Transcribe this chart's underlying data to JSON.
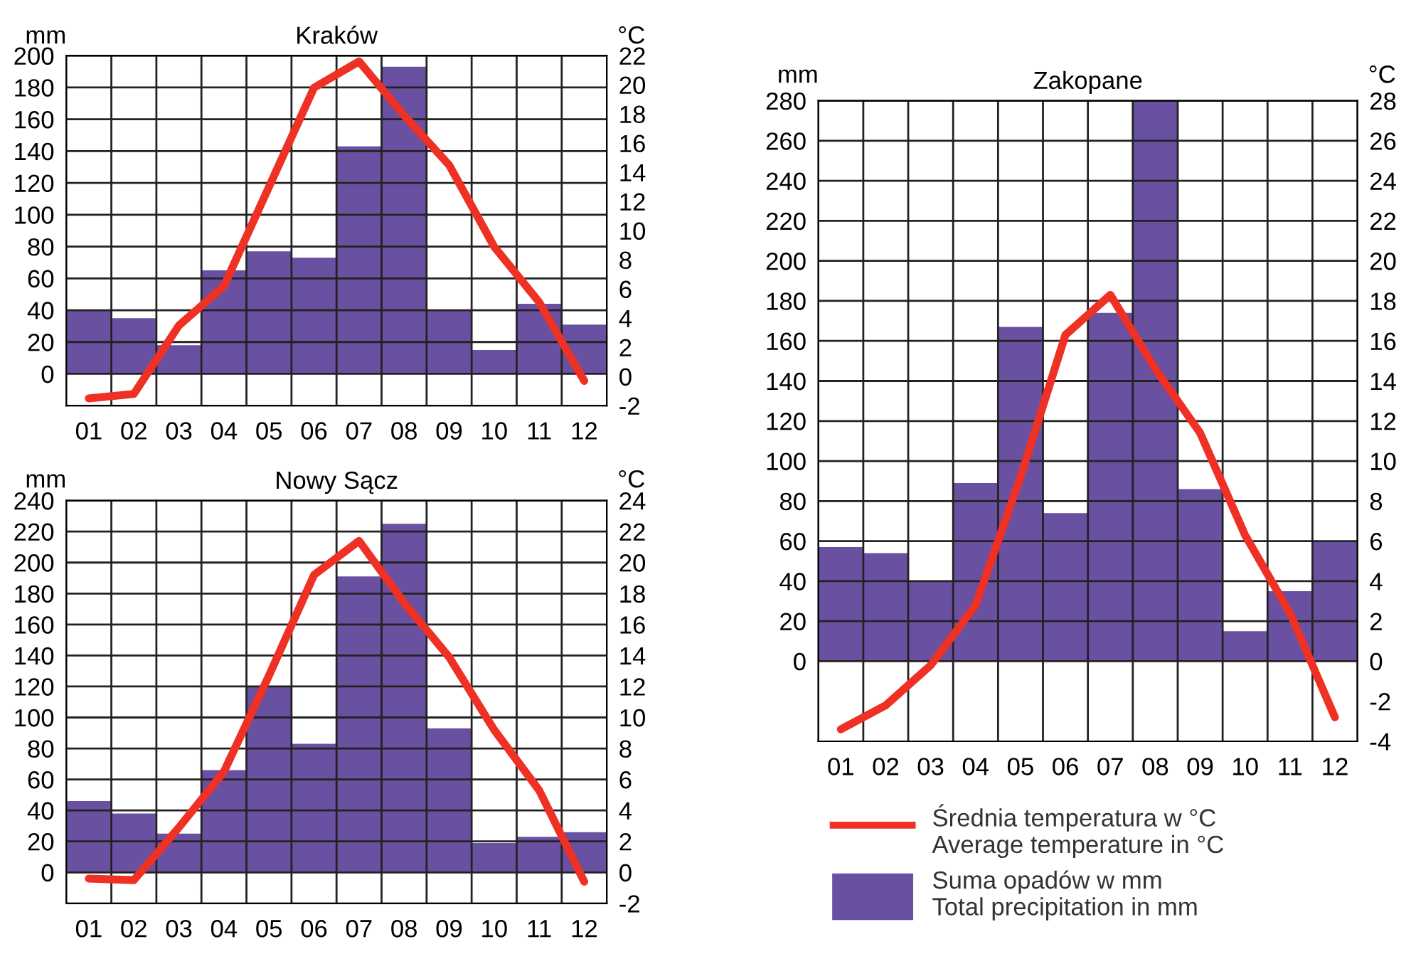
{
  "chart_data": [
    {
      "type": "bar",
      "title": "Kraków",
      "ylabel": "mm",
      "y2label": "°C",
      "categories": [
        "01",
        "02",
        "03",
        "04",
        "05",
        "06",
        "07",
        "08",
        "09",
        "10",
        "11",
        "12"
      ],
      "ylim": [
        -20,
        200
      ],
      "yticks": [
        0,
        20,
        40,
        60,
        80,
        100,
        120,
        140,
        160,
        180,
        200
      ],
      "y2lim": [
        -2,
        22
      ],
      "y2ticks": [
        -2,
        0,
        2,
        4,
        6,
        8,
        10,
        12,
        14,
        16,
        18,
        20,
        22
      ],
      "grid": true,
      "legend": false,
      "series": [
        {
          "color": "#6a50a0",
          "values": [
            40,
            35,
            18,
            65,
            77,
            73,
            143,
            193,
            40,
            15,
            44,
            31
          ]
        },
        {
          "type": "line",
          "axis": "y2",
          "color": "#ee3124",
          "values": [
            -1.5,
            -1.2,
            3.5,
            6.2,
            13.0,
            19.8,
            21.6,
            17.9,
            14.5,
            8.9,
            5.1,
            -0.3
          ]
        }
      ]
    },
    {
      "type": "bar",
      "title": "Nowy Sącz",
      "ylabel": "mm",
      "y2label": "°C",
      "categories": [
        "01",
        "02",
        "03",
        "04",
        "05",
        "06",
        "07",
        "08",
        "09",
        "10",
        "11",
        "12"
      ],
      "ylim": [
        -20,
        240
      ],
      "yticks": [
        0,
        20,
        40,
        60,
        80,
        100,
        120,
        140,
        160,
        180,
        200,
        220,
        240
      ],
      "y2lim": [
        -2,
        24
      ],
      "y2ticks": [
        -2,
        0,
        2,
        4,
        6,
        8,
        10,
        12,
        14,
        16,
        18,
        20,
        22,
        24
      ],
      "grid": true,
      "legend": false,
      "series": [
        {
          "color": "#6a50a0",
          "values": [
            46,
            38,
            25,
            66,
            120,
            83,
            191,
            225,
            93,
            19,
            23,
            26
          ]
        },
        {
          "type": "line",
          "axis": "y2",
          "color": "#ee3124",
          "values": [
            -0.4,
            -0.5,
            2.9,
            6.5,
            12.7,
            19.2,
            21.4,
            17.4,
            13.9,
            9.2,
            5.3,
            -0.6
          ]
        }
      ]
    },
    {
      "type": "bar",
      "title": "Zakopane",
      "ylabel": "mm",
      "y2label": "°C",
      "categories": [
        "01",
        "02",
        "03",
        "04",
        "05",
        "06",
        "07",
        "08",
        "09",
        "10",
        "11",
        "12"
      ],
      "ylim": [
        -40,
        280
      ],
      "yticks": [
        0,
        20,
        40,
        60,
        80,
        100,
        120,
        140,
        160,
        180,
        200,
        220,
        240,
        260,
        280
      ],
      "y2lim": [
        -4,
        28
      ],
      "y2ticks": [
        -4,
        -2,
        0,
        2,
        4,
        6,
        8,
        10,
        12,
        14,
        16,
        18,
        20,
        22,
        24,
        26,
        28
      ],
      "grid": true,
      "legend": "bottom",
      "series": [
        {
          "type": "line",
          "axis": "y2",
          "name": "Średnia temperatura w °C\nAverage temperature in °C",
          "color": "#ee3124",
          "values": [
            -3.4,
            -2.2,
            -0.2,
            2.8,
            9.2,
            16.3,
            18.3,
            14.6,
            11.4,
            6.3,
            2.4,
            -2.8
          ]
        },
        {
          "name": "Suma opadów w mm\nTotal precipitation in mm",
          "color": "#6a50a0",
          "values": [
            57,
            54,
            40,
            89,
            167,
            74,
            174,
            280,
            86,
            15,
            35,
            60
          ]
        }
      ]
    }
  ]
}
